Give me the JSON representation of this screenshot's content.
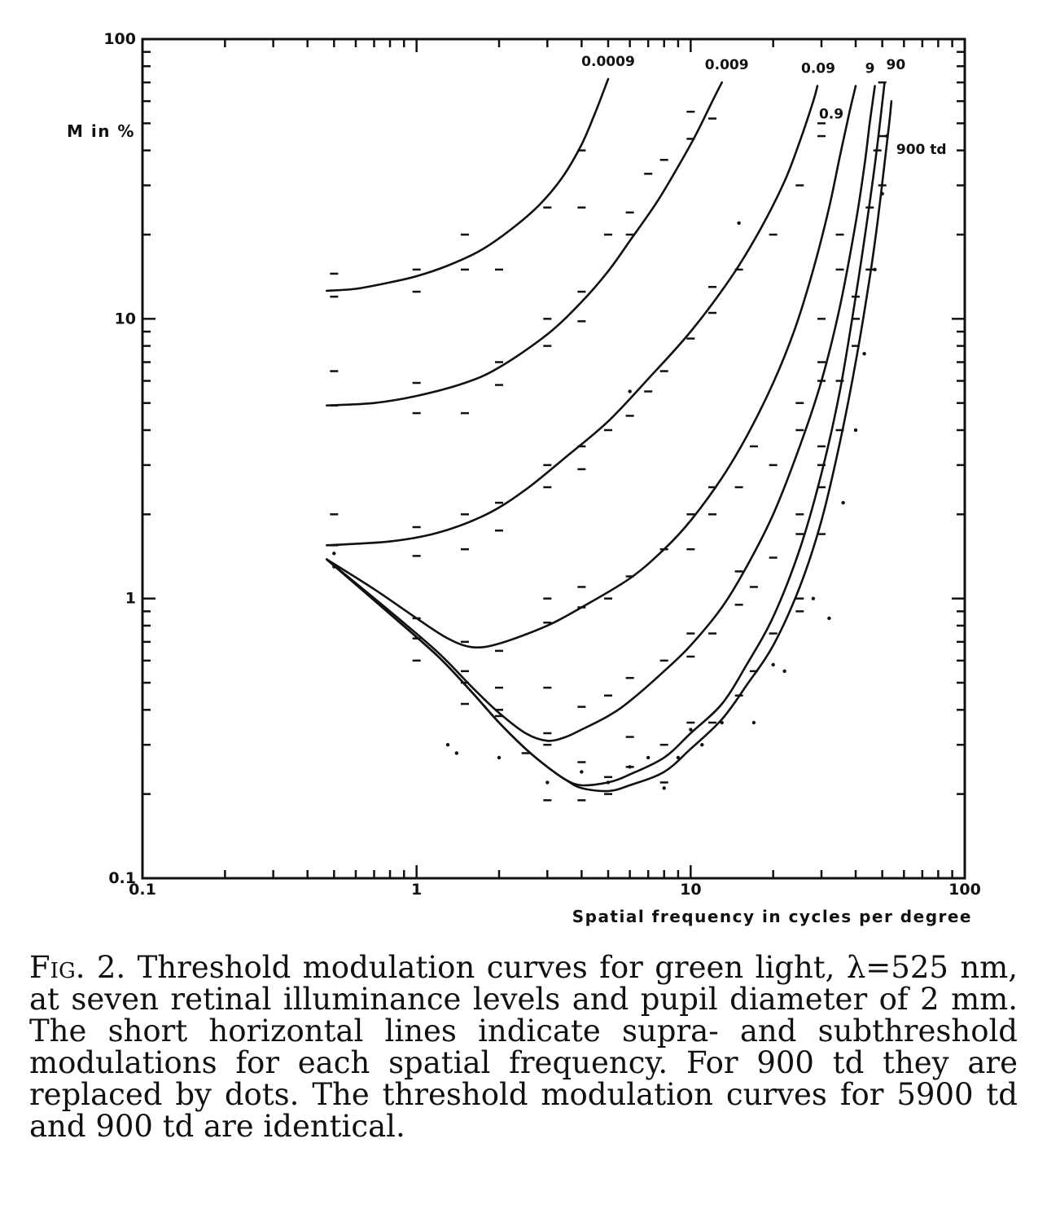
{
  "chart_data": {
    "type": "line",
    "x_scale": "log",
    "y_scale": "log",
    "xlim": [
      0.1,
      100
    ],
    "ylim": [
      0.1,
      100
    ],
    "ylabel": "M in %",
    "xlabel": "Spatial frequency in cycles per degree",
    "x_ticks": [
      {
        "value": 0.1,
        "label": "0.1"
      },
      {
        "value": 1,
        "label": "1"
      },
      {
        "value": 10,
        "label": "10"
      },
      {
        "value": 100,
        "label": "100"
      }
    ],
    "y_ticks": [
      {
        "value": 0.1,
        "label": "0.1"
      },
      {
        "value": 1,
        "label": "1"
      },
      {
        "value": 10,
        "label": "10"
      },
      {
        "value": 100,
        "label": "100"
      }
    ],
    "grid": false,
    "line_color": "#111111",
    "series": [
      {
        "name": "0.0009",
        "points": [
          [
            0.47,
            12.6
          ],
          [
            0.6,
            12.8
          ],
          [
            0.8,
            13.5
          ],
          [
            1.0,
            14.2
          ],
          [
            1.3,
            15.5
          ],
          [
            1.7,
            17.5
          ],
          [
            2.2,
            20.8
          ],
          [
            2.8,
            25.5
          ],
          [
            3.4,
            32.0
          ],
          [
            4.0,
            42.0
          ],
          [
            4.5,
            55.0
          ],
          [
            5.0,
            72.0
          ]
        ]
      },
      {
        "name": "0.009",
        "points": [
          [
            0.47,
            4.9
          ],
          [
            0.7,
            5.0
          ],
          [
            1.0,
            5.3
          ],
          [
            1.5,
            5.9
          ],
          [
            2.0,
            6.7
          ],
          [
            3.0,
            8.8
          ],
          [
            4.0,
            11.5
          ],
          [
            5.0,
            14.8
          ],
          [
            6.0,
            19.0
          ],
          [
            7.5,
            26.0
          ],
          [
            9.0,
            35.0
          ],
          [
            10.5,
            46.0
          ],
          [
            12.0,
            60.0
          ],
          [
            13.0,
            70.0
          ]
        ]
      },
      {
        "name": "0.09",
        "points": [
          [
            0.47,
            1.55
          ],
          [
            0.8,
            1.6
          ],
          [
            1.2,
            1.72
          ],
          [
            1.8,
            2.0
          ],
          [
            2.5,
            2.45
          ],
          [
            3.5,
            3.2
          ],
          [
            5.0,
            4.3
          ],
          [
            7.0,
            6.1
          ],
          [
            10.0,
            9.0
          ],
          [
            14.0,
            14.0
          ],
          [
            18.0,
            21.0
          ],
          [
            22.0,
            31.0
          ],
          [
            25.0,
            43.0
          ],
          [
            28.0,
            60.0
          ],
          [
            29.0,
            68.0
          ]
        ]
      },
      {
        "name": "0.9",
        "points": [
          [
            0.47,
            1.38
          ],
          [
            0.7,
            1.08
          ],
          [
            1.0,
            0.85
          ],
          [
            1.3,
            0.72
          ],
          [
            1.6,
            0.67
          ],
          [
            2.0,
            0.69
          ],
          [
            3.0,
            0.8
          ],
          [
            4.0,
            0.93
          ],
          [
            6.0,
            1.18
          ],
          [
            8.0,
            1.5
          ],
          [
            10.0,
            1.9
          ],
          [
            13.0,
            2.7
          ],
          [
            16.0,
            3.8
          ],
          [
            20.0,
            5.9
          ],
          [
            24.0,
            9.2
          ],
          [
            28.0,
            15.0
          ],
          [
            32.0,
            25.0
          ],
          [
            35.0,
            38.0
          ],
          [
            38.0,
            55.0
          ],
          [
            40.0,
            68.0
          ]
        ]
      },
      {
        "name": "9",
        "points": [
          [
            0.47,
            1.38
          ],
          [
            0.8,
            0.9
          ],
          [
            1.2,
            0.64
          ],
          [
            1.6,
            0.48
          ],
          [
            2.0,
            0.39
          ],
          [
            2.5,
            0.33
          ],
          [
            3.0,
            0.31
          ],
          [
            3.5,
            0.32
          ],
          [
            4.0,
            0.34
          ],
          [
            5.0,
            0.38
          ],
          [
            6.0,
            0.43
          ],
          [
            8.0,
            0.55
          ],
          [
            10.0,
            0.68
          ],
          [
            13.0,
            0.93
          ],
          [
            16.0,
            1.3
          ],
          [
            20.0,
            2.0
          ],
          [
            25.0,
            3.5
          ],
          [
            30.0,
            6.0
          ],
          [
            35.0,
            11.0
          ],
          [
            40.0,
            22.0
          ],
          [
            43.0,
            35.0
          ],
          [
            45.0,
            50.0
          ],
          [
            47.0,
            68.0
          ]
        ]
      },
      {
        "name": "90",
        "points": [
          [
            0.47,
            1.38
          ],
          [
            0.8,
            0.88
          ],
          [
            1.2,
            0.62
          ],
          [
            1.6,
            0.46
          ],
          [
            2.0,
            0.36
          ],
          [
            2.5,
            0.29
          ],
          [
            3.0,
            0.25
          ],
          [
            3.5,
            0.225
          ],
          [
            4.0,
            0.215
          ],
          [
            5.0,
            0.22
          ],
          [
            6.0,
            0.235
          ],
          [
            8.0,
            0.27
          ],
          [
            10.0,
            0.33
          ],
          [
            13.0,
            0.42
          ],
          [
            16.0,
            0.58
          ],
          [
            20.0,
            0.86
          ],
          [
            25.0,
            1.5
          ],
          [
            30.0,
            2.8
          ],
          [
            35.0,
            5.5
          ],
          [
            40.0,
            12.0
          ],
          [
            45.0,
            26.0
          ],
          [
            48.0,
            42.0
          ],
          [
            51.0,
            70.0
          ]
        ]
      },
      {
        "name": "900 td",
        "points": [
          [
            0.47,
            1.38
          ],
          [
            0.8,
            0.88
          ],
          [
            1.2,
            0.62
          ],
          [
            1.6,
            0.46
          ],
          [
            2.0,
            0.36
          ],
          [
            2.5,
            0.29
          ],
          [
            3.0,
            0.25
          ],
          [
            3.5,
            0.225
          ],
          [
            4.0,
            0.21
          ],
          [
            5.0,
            0.205
          ],
          [
            6.0,
            0.215
          ],
          [
            8.0,
            0.24
          ],
          [
            10.0,
            0.29
          ],
          [
            13.0,
            0.37
          ],
          [
            16.0,
            0.49
          ],
          [
            20.0,
            0.68
          ],
          [
            25.0,
            1.1
          ],
          [
            30.0,
            1.9
          ],
          [
            35.0,
            3.6
          ],
          [
            40.0,
            7.0
          ],
          [
            45.0,
            14.0
          ],
          [
            48.0,
            22.0
          ],
          [
            51.0,
            36.0
          ],
          [
            53.0,
            50.0
          ],
          [
            54.0,
            60.0
          ]
        ]
      }
    ],
    "threshold_marks": [
      [
        0.5,
        14.5
      ],
      [
        0.5,
        12.0
      ],
      [
        1.0,
        15.0
      ],
      [
        1.0,
        12.5
      ],
      [
        1.5,
        20.0
      ],
      [
        1.5,
        15.0
      ],
      [
        2.0,
        15.0
      ],
      [
        3.0,
        25.0
      ],
      [
        4.0,
        40.0
      ],
      [
        4.0,
        25.0
      ],
      [
        0.5,
        6.5
      ],
      [
        0.5,
        4.9
      ],
      [
        1.0,
        5.9
      ],
      [
        1.0,
        4.6
      ],
      [
        1.5,
        4.6
      ],
      [
        2.0,
        7.0
      ],
      [
        2.0,
        5.8
      ],
      [
        3.0,
        10.0
      ],
      [
        3.0,
        8.0
      ],
      [
        4.0,
        12.5
      ],
      [
        4.0,
        9.8
      ],
      [
        5.0,
        20.0
      ],
      [
        6.0,
        24.0
      ],
      [
        6.0,
        20.0
      ],
      [
        7.0,
        33.0
      ],
      [
        8.0,
        37.0
      ],
      [
        10.0,
        55.0
      ],
      [
        10.0,
        44.0
      ],
      [
        12.0,
        52.0
      ],
      [
        0.5,
        2.0
      ],
      [
        0.5,
        1.55
      ],
      [
        1.0,
        1.8
      ],
      [
        1.0,
        1.42
      ],
      [
        1.5,
        2.0
      ],
      [
        1.5,
        1.5
      ],
      [
        2.0,
        2.2
      ],
      [
        2.0,
        1.75
      ],
      [
        3.0,
        3.0
      ],
      [
        3.0,
        2.5
      ],
      [
        4.0,
        3.5
      ],
      [
        4.0,
        2.9
      ],
      [
        5.0,
        4.0
      ],
      [
        6.0,
        4.5
      ],
      [
        7.0,
        5.5
      ],
      [
        8.0,
        6.5
      ],
      [
        10.0,
        8.5
      ],
      [
        12.0,
        13.0
      ],
      [
        12.0,
        10.5
      ],
      [
        15.0,
        15.0
      ],
      [
        20.0,
        20.0
      ],
      [
        25.0,
        30.0
      ],
      [
        30.0,
        50.0
      ],
      [
        30.0,
        45.0
      ],
      [
        1.0,
        0.85
      ],
      [
        1.0,
        0.72
      ],
      [
        1.5,
        0.7
      ],
      [
        2.0,
        0.65
      ],
      [
        3.0,
        1.0
      ],
      [
        3.0,
        0.82
      ],
      [
        4.0,
        1.1
      ],
      [
        4.0,
        0.93
      ],
      [
        5.0,
        1.0
      ],
      [
        6.0,
        1.2
      ],
      [
        8.0,
        1.5
      ],
      [
        10.0,
        2.0
      ],
      [
        10.0,
        1.5
      ],
      [
        12.0,
        2.5
      ],
      [
        12.0,
        2.0
      ],
      [
        15.0,
        2.5
      ],
      [
        17.0,
        3.5
      ],
      [
        20.0,
        3.0
      ],
      [
        25.0,
        5.0
      ],
      [
        25.0,
        4.0
      ],
      [
        30.0,
        7.0
      ],
      [
        30.0,
        6.0
      ],
      [
        30.0,
        10.0
      ],
      [
        35.0,
        20.0
      ],
      [
        35.0,
        15.0
      ],
      [
        1.0,
        0.6
      ],
      [
        1.5,
        0.55
      ],
      [
        1.5,
        0.5
      ],
      [
        2.0,
        0.48
      ],
      [
        2.0,
        0.4
      ],
      [
        3.0,
        0.48
      ],
      [
        3.0,
        0.33
      ],
      [
        4.0,
        0.41
      ],
      [
        5.0,
        0.45
      ],
      [
        6.0,
        0.52
      ],
      [
        8.0,
        0.6
      ],
      [
        10.0,
        0.75
      ],
      [
        10.0,
        0.62
      ],
      [
        12.0,
        0.75
      ],
      [
        15.0,
        0.95
      ],
      [
        15.0,
        1.25
      ],
      [
        17.0,
        1.1
      ],
      [
        20.0,
        1.4
      ],
      [
        25.0,
        2.0
      ],
      [
        25.0,
        1.7
      ],
      [
        30.0,
        3.5
      ],
      [
        30.0,
        3.0
      ],
      [
        35.0,
        6.0
      ],
      [
        40.0,
        12.0
      ],
      [
        45.0,
        25.0
      ],
      [
        48.0,
        40.0
      ],
      [
        1.5,
        0.42
      ],
      [
        2.0,
        0.38
      ],
      [
        2.5,
        0.28
      ],
      [
        3.0,
        0.3
      ],
      [
        3.0,
        0.19
      ],
      [
        4.0,
        0.26
      ],
      [
        4.0,
        0.19
      ],
      [
        5.0,
        0.23
      ],
      [
        5.0,
        0.2
      ],
      [
        6.0,
        0.25
      ],
      [
        6.0,
        0.32
      ],
      [
        8.0,
        0.3
      ],
      [
        8.0,
        0.22
      ],
      [
        10.0,
        0.36
      ],
      [
        12.0,
        0.36
      ],
      [
        15.0,
        0.45
      ],
      [
        17.0,
        0.55
      ],
      [
        20.0,
        0.75
      ],
      [
        25.0,
        1.0
      ],
      [
        25.0,
        0.9
      ],
      [
        30.0,
        1.7
      ],
      [
        30.0,
        2.5
      ],
      [
        35.0,
        4.0
      ],
      [
        40.0,
        10.0
      ],
      [
        40.0,
        8.0
      ],
      [
        45.0,
        15.0
      ],
      [
        50.0,
        30.0
      ],
      [
        50.0,
        45.0
      ],
      [
        50.0,
        70.0
      ]
    ],
    "dots_900td": [
      [
        0.5,
        1.3
      ],
      [
        1.3,
        0.3
      ],
      [
        2.0,
        0.27
      ],
      [
        3.0,
        0.22
      ],
      [
        4.0,
        0.24
      ],
      [
        5.0,
        0.22
      ],
      [
        6.0,
        0.25
      ],
      [
        7.0,
        0.27
      ],
      [
        8.0,
        0.21
      ],
      [
        9.0,
        0.27
      ],
      [
        10.0,
        0.34
      ],
      [
        11.0,
        0.3
      ],
      [
        13.0,
        0.36
      ],
      [
        17.0,
        0.36
      ],
      [
        20.0,
        0.58
      ],
      [
        22.0,
        0.55
      ],
      [
        28.0,
        1.0
      ],
      [
        32.0,
        0.85
      ],
      [
        36.0,
        2.2
      ],
      [
        40.0,
        4.0
      ],
      [
        43.0,
        7.5
      ],
      [
        47.0,
        15.0
      ],
      [
        50.0,
        28.0
      ],
      [
        52.0,
        45.0
      ],
      [
        0.5,
        1.45
      ],
      [
        1.4,
        0.28
      ],
      [
        6.0,
        5.5
      ],
      [
        15.0,
        22.0
      ]
    ]
  },
  "caption": {
    "fig_label": "Fig. 2.",
    "text": " Threshold modulation curves for green light, λ=525 nm, at seven retinal illuminance levels and pupil diameter of 2 mm. The short horizontal lines indicate supra- and subthreshold modulations for each spatial frequency. For 900 td they are replaced by dots. The threshold modulation curves for 5900 td and 900 td are identical."
  }
}
